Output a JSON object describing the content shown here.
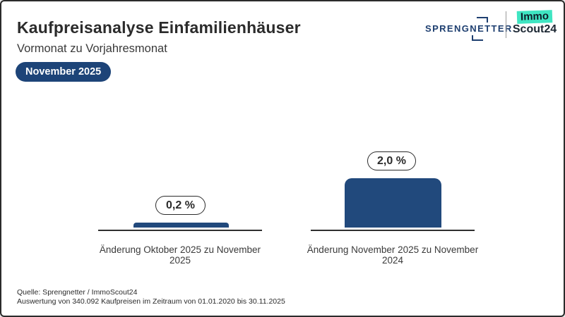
{
  "header": {
    "title": "Kaufpreisanalyse Einfamilienhäuser",
    "subtitle": "Vormonat zu Vorjahresmonat",
    "badge": "November 2025"
  },
  "logos": {
    "sprengnetter_text": "SPRENGNETTER",
    "immoscout_line1": "Immo",
    "immoscout_line2": "Scout24"
  },
  "chart_data": {
    "type": "bar",
    "categories": [
      "Änderung Oktober 2025 zu November 2025",
      "Änderung November 2025 zu November 2024"
    ],
    "values": [
      0.2,
      2.0
    ],
    "value_labels": [
      "0,2 %",
      "2,0 %"
    ],
    "title": "Kaufpreisanalyse Einfamilienhäuser",
    "subtitle": "Vormonat zu Vorjahresmonat",
    "xlabel": "",
    "ylabel": "",
    "ylim": [
      0,
      2.2
    ],
    "grid": false,
    "legend": false,
    "bar_color": "#21497C",
    "value_label_style": "outlined-pill-above-bar"
  },
  "footer": {
    "source_line1": "Quelle: Sprengnetter / ImmoScout24",
    "source_line2": "Auswertung von 340.092 Kaufpreisen im Zeitraum von 01.01.2020 bis 30.11.2025"
  },
  "colors": {
    "bar_blue": "#21497C",
    "badge_blue": "#1D4478",
    "sprengnetter_blue": "#1E3F70",
    "immoscout_teal": "#3FE5C2",
    "border_dark": "#2B2B2B"
  }
}
